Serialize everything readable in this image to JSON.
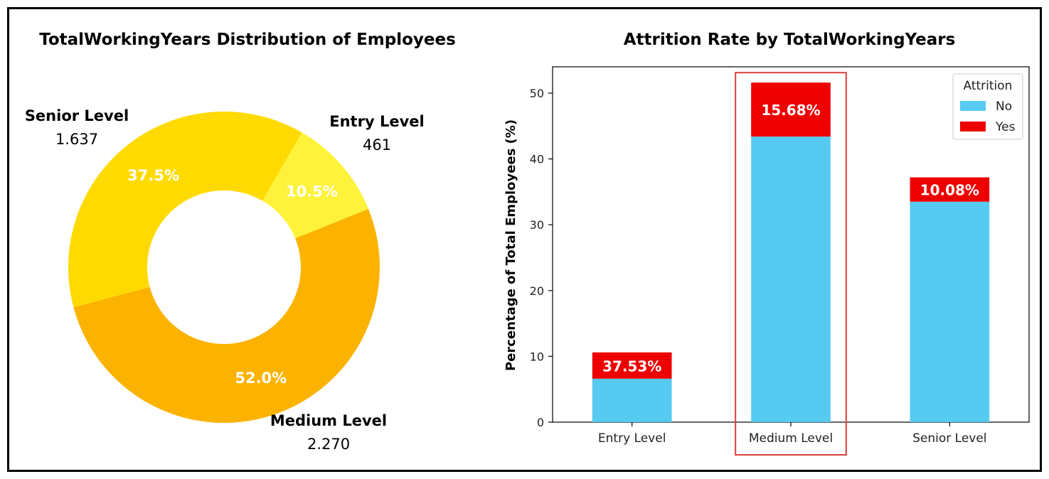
{
  "chart_data": [
    {
      "type": "pie",
      "title": "TotalWorkingYears Distribution of Employees",
      "slices": [
        {
          "label": "Entry Level",
          "value": 461,
          "value_label": "461",
          "pct_label": "10.5%",
          "color": "#FFF23A"
        },
        {
          "label": "Medium Level",
          "value": 2270,
          "value_label": "2.270",
          "pct_label": "52.0%",
          "color": "#FBB300"
        },
        {
          "label": "Senior Level",
          "value": 1637,
          "value_label": "1.637",
          "pct_label": "37.5%",
          "color": "#FFDA00"
        }
      ]
    },
    {
      "type": "bar",
      "title": "Attrition Rate by TotalWorkingYears",
      "ylabel": "Percentage of Total Employees (%)",
      "xlabel": "",
      "ylim": [
        0,
        54
      ],
      "yticks": [
        0,
        10,
        20,
        30,
        40,
        50
      ],
      "categories": [
        "Entry Level",
        "Medium Level",
        "Senior Level"
      ],
      "stacked": true,
      "series": [
        {
          "name": "No",
          "color": "#56CAF1",
          "values": [
            6.6,
            43.4,
            33.5
          ]
        },
        {
          "name": "Yes",
          "color": "#EE0000",
          "values": [
            4.0,
            8.2,
            3.7
          ]
        }
      ],
      "bar_labels": [
        "37.53%",
        "15.68%",
        "10.08%"
      ],
      "highlight_category": "Medium Level",
      "highlight_color": "#D9403A",
      "legend": {
        "title": "Attrition",
        "placement": "top-right"
      }
    }
  ]
}
